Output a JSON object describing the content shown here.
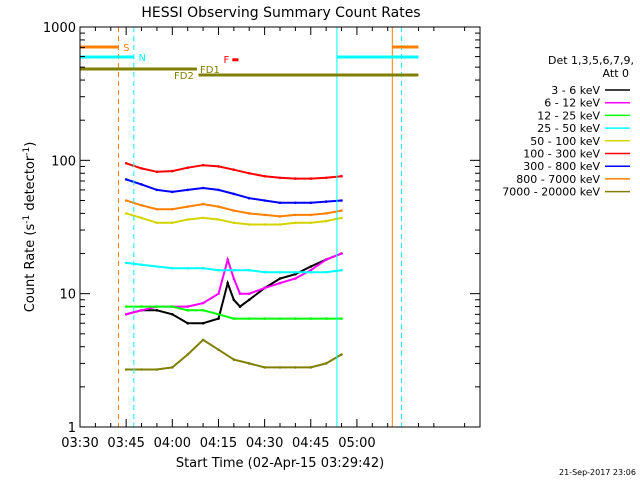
{
  "chart_data": {
    "type": "line",
    "title": "HESSI Observing Summary Count Rates",
    "xlabel": "Start Time (02-Apr-15 03:29:42)",
    "ylabel_main": "Count Rate (s",
    "ylabel_sup1": "-1",
    "ylabel_mid": " detector",
    "ylabel_sup2": "-1",
    "ylabel_end": ")",
    "y_scale": "log",
    "ylim": [
      1,
      1000
    ],
    "y_ticks": [
      {
        "v": 1,
        "label": "1"
      },
      {
        "v": 10,
        "label": "10"
      },
      {
        "v": 100,
        "label": "100"
      },
      {
        "v": 1000,
        "label": "1000"
      }
    ],
    "xlim_min": [
      0,
      130
    ],
    "x_ticks": [
      {
        "v": 0,
        "label": "03:30"
      },
      {
        "v": 15,
        "label": "03:45"
      },
      {
        "v": 30,
        "label": "04:00"
      },
      {
        "v": 45,
        "label": "04:15"
      },
      {
        "v": 60,
        "label": "04:30"
      },
      {
        "v": 75,
        "label": "04:45"
      },
      {
        "v": 90,
        "label": "05:00"
      }
    ],
    "legend": {
      "placement": "right",
      "header1": "Det 1,3,5,6,7,9,",
      "header2": "Att 0",
      "entries": [
        {
          "label": "3 - 6 keV",
          "color": "#000000"
        },
        {
          "label": "6 - 12 keV",
          "color": "#ff00ff"
        },
        {
          "label": "12 - 25 keV",
          "color": "#00ff00"
        },
        {
          "label": "25 - 50 keV",
          "color": "#00ffff"
        },
        {
          "label": "50 - 100 keV",
          "color": "#d4d400"
        },
        {
          "label": "100 - 300 keV",
          "color": "#ff0000"
        },
        {
          "label": "300 - 800 keV",
          "color": "#0000ff"
        },
        {
          "label": "800 - 7000 keV",
          "color": "#ff8000"
        },
        {
          "label": "7000 - 20000 keV",
          "color": "#808000"
        }
      ]
    },
    "series": [
      {
        "name": "3 - 6 keV",
        "color": "#000000",
        "x": [
          15,
          20,
          25,
          30,
          35,
          40,
          45,
          48,
          50,
          52,
          55,
          60,
          65,
          70,
          75,
          80,
          85
        ],
        "y": [
          7,
          7.5,
          7.5,
          7,
          6,
          6,
          6.5,
          12,
          9,
          8,
          9,
          11,
          13,
          14,
          16,
          18,
          20
        ]
      },
      {
        "name": "6 - 12 keV",
        "color": "#ff00ff",
        "x": [
          15,
          20,
          25,
          30,
          35,
          40,
          45,
          48,
          50,
          52,
          55,
          60,
          65,
          70,
          75,
          80,
          85
        ],
        "y": [
          7,
          7.5,
          8,
          8,
          8,
          8.5,
          10,
          18,
          13,
          10,
          10,
          11,
          12,
          13,
          15,
          18,
          20
        ]
      },
      {
        "name": "12 - 25 keV",
        "color": "#00ff00",
        "x": [
          15,
          20,
          25,
          30,
          35,
          40,
          45,
          50,
          55,
          60,
          65,
          70,
          75,
          80,
          85
        ],
        "y": [
          8,
          8,
          8,
          8,
          7.5,
          7.5,
          7,
          6.5,
          6.5,
          6.5,
          6.5,
          6.5,
          6.5,
          6.5,
          6.5
        ]
      },
      {
        "name": "25 - 50 keV",
        "color": "#00ffff",
        "x": [
          15,
          20,
          25,
          30,
          35,
          40,
          45,
          50,
          55,
          60,
          65,
          70,
          75,
          80,
          85
        ],
        "y": [
          17,
          16.5,
          16,
          15.5,
          15.5,
          15.5,
          15,
          15,
          15,
          14.5,
          14.5,
          14.5,
          14.5,
          14.5,
          15
        ]
      },
      {
        "name": "50 - 100 keV",
        "color": "#d4d400",
        "x": [
          15,
          20,
          25,
          30,
          35,
          40,
          45,
          50,
          55,
          60,
          65,
          70,
          75,
          80,
          85
        ],
        "y": [
          40,
          37,
          34,
          34,
          36,
          37,
          36,
          34,
          33,
          33,
          33,
          34,
          34,
          35,
          37
        ]
      },
      {
        "name": "100 - 300 keV",
        "color": "#ff0000",
        "x": [
          15,
          20,
          25,
          30,
          35,
          40,
          45,
          50,
          55,
          60,
          65,
          70,
          75,
          80,
          85
        ],
        "y": [
          95,
          87,
          82,
          83,
          88,
          92,
          90,
          85,
          80,
          76,
          74,
          73,
          73,
          74,
          76
        ]
      },
      {
        "name": "300 - 800 keV",
        "color": "#0000ff",
        "x": [
          15,
          20,
          25,
          30,
          35,
          40,
          45,
          50,
          55,
          60,
          65,
          70,
          75,
          80,
          85
        ],
        "y": [
          72,
          66,
          60,
          58,
          60,
          62,
          60,
          56,
          52,
          50,
          48,
          48,
          48,
          49,
          50
        ]
      },
      {
        "name": "800 - 7000 keV",
        "color": "#ff8000",
        "x": [
          15,
          20,
          25,
          30,
          35,
          40,
          45,
          50,
          55,
          60,
          65,
          70,
          75,
          80,
          85
        ],
        "y": [
          50,
          46,
          43,
          43,
          45,
          47,
          45,
          42,
          40,
          39,
          38,
          39,
          39,
          40,
          42
        ]
      },
      {
        "name": "7000 - 20000 keV",
        "color": "#808000",
        "x": [
          15,
          20,
          25,
          30,
          35,
          40,
          45,
          50,
          55,
          60,
          65,
          70,
          75,
          80,
          85
        ],
        "y": [
          2.7,
          2.7,
          2.7,
          2.8,
          3.5,
          4.5,
          3.8,
          3.2,
          3,
          2.8,
          2.8,
          2.8,
          2.8,
          3,
          3.5
        ]
      }
    ],
    "vlines": [
      {
        "x": 0,
        "color": "#00ffff",
        "style": "solid"
      },
      {
        "x": 12.5,
        "color": "#ff8000",
        "style": "dashed"
      },
      {
        "x": 17.5,
        "color": "#00ffff",
        "style": "dashed"
      },
      {
        "x": 83.5,
        "color": "#00ffff",
        "style": "solid"
      },
      {
        "x": 101.5,
        "color": "#ff8000",
        "style": "solid"
      },
      {
        "x": 104.5,
        "color": "#00ffff",
        "style": "dashed"
      }
    ],
    "flag_bars": [
      {
        "label": "S",
        "color": "#ff8000",
        "x0": 0,
        "x1": 12.5,
        "yfrac": 0.95,
        "label_x": 14,
        "label_side": "right"
      },
      {
        "label": "",
        "color": "#ff8000",
        "x0": 101.5,
        "x1": 110,
        "yfrac": 0.95,
        "label_x": 0,
        "label_side": "none"
      },
      {
        "label": "N",
        "color": "#00ffff",
        "x0": 0,
        "x1": 17.5,
        "yfrac": 0.925,
        "label_x": 19,
        "label_side": "right"
      },
      {
        "label": "",
        "color": "#00ffff",
        "x0": 83.5,
        "x1": 110,
        "yfrac": 0.925,
        "label_x": 0,
        "label_side": "none"
      },
      {
        "label": "FD1",
        "color": "#808000",
        "x0": 0,
        "x1": 38,
        "yfrac": 0.895,
        "label_x": 39,
        "label_side": "right"
      },
      {
        "label": "FD2",
        "color": "#808000",
        "x0": 38.5,
        "x1": 110,
        "yfrac": 0.88,
        "label_x": 37,
        "label_side": "left"
      }
    ],
    "flare_marker": {
      "label": "F",
      "color": "#ff0000",
      "x0": 49.5,
      "x1": 51.5,
      "yfrac": 0.918
    },
    "datestamp": "21-Sep-2017 23:06"
  }
}
